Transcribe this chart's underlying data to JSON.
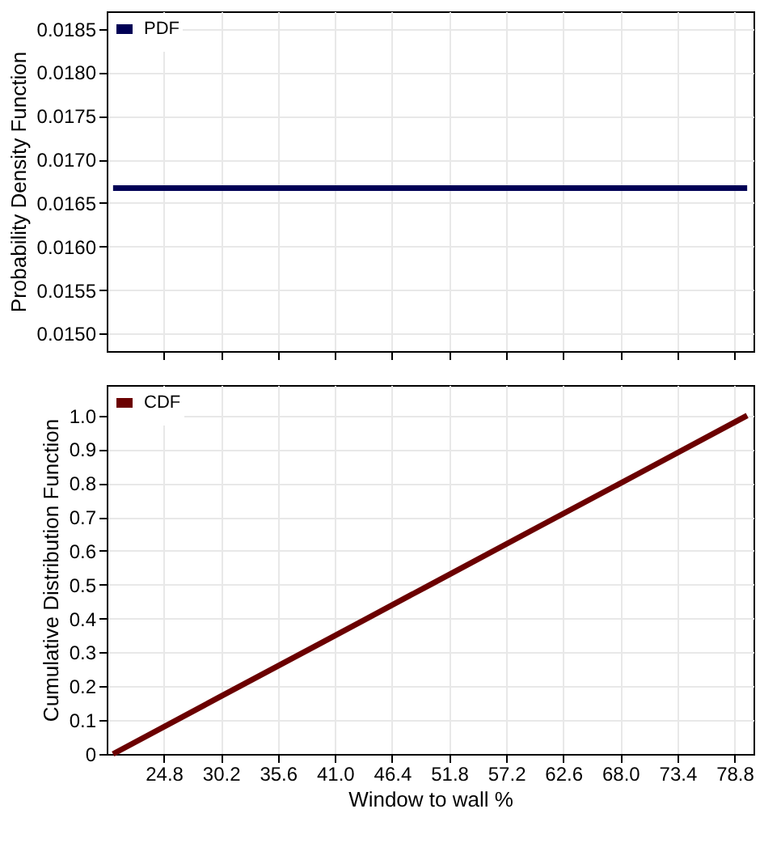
{
  "chart_data": [
    {
      "type": "line",
      "ylabel": "Probability Density Function",
      "x": [
        20,
        80
      ],
      "xlim": [
        19.4,
        80.6
      ],
      "xticks": [
        24.8,
        30.2,
        35.6,
        41.0,
        46.4,
        51.8,
        57.2,
        62.6,
        68.0,
        73.4,
        78.8
      ],
      "ylim": [
        0.0148,
        0.0187
      ],
      "yticks": [
        {
          "value": 0.015,
          "label": "0.0150"
        },
        {
          "value": 0.0155,
          "label": "0.0155"
        },
        {
          "value": 0.016,
          "label": "0.0160"
        },
        {
          "value": 0.0165,
          "label": "0.0165"
        },
        {
          "value": 0.017,
          "label": "0.0170"
        },
        {
          "value": 0.0175,
          "label": "0.0175"
        },
        {
          "value": 0.018,
          "label": "0.0180"
        },
        {
          "value": 0.0185,
          "label": "0.0185"
        }
      ],
      "tick_labels": "y",
      "grid": true,
      "legend": "top left",
      "marker": "none",
      "line_style": "solid",
      "series": [
        {
          "name": "PDF",
          "color": "#000055",
          "values": [
            0.01667,
            0.01667
          ]
        }
      ]
    },
    {
      "type": "line",
      "xlabel": "Window to wall %",
      "ylabel": "Cumulative Distribution Function",
      "x": [
        20,
        30,
        40,
        50,
        60,
        70,
        80
      ],
      "xlim": [
        19.4,
        80.6
      ],
      "xticks": [
        {
          "value": 24.8,
          "label": "24.8"
        },
        {
          "value": 30.2,
          "label": "30.2"
        },
        {
          "value": 35.6,
          "label": "35.6"
        },
        {
          "value": 41.0,
          "label": "41.0"
        },
        {
          "value": 46.4,
          "label": "46.4"
        },
        {
          "value": 51.8,
          "label": "51.8"
        },
        {
          "value": 57.2,
          "label": "57.2"
        },
        {
          "value": 62.6,
          "label": "62.6"
        },
        {
          "value": 68.0,
          "label": "68.0"
        },
        {
          "value": 73.4,
          "label": "73.4"
        },
        {
          "value": 78.8,
          "label": "78.8"
        }
      ],
      "ylim": [
        0,
        1.09
      ],
      "yticks": [
        0,
        {
          "value": 0.1,
          "label": "0.1"
        },
        {
          "value": 0.2,
          "label": "0.2"
        },
        {
          "value": 0.3,
          "label": "0.3"
        },
        {
          "value": 0.4,
          "label": "0.4"
        },
        {
          "value": 0.5,
          "label": "0.5"
        },
        {
          "value": 0.6,
          "label": "0.6"
        },
        {
          "value": 0.7,
          "label": "0.7"
        },
        {
          "value": 0.8,
          "label": "0.8"
        },
        {
          "value": 0.9,
          "label": "0.9"
        },
        {
          "value": 1.0,
          "label": "1.0"
        }
      ],
      "grid": true,
      "legend": "top left",
      "marker": "none",
      "line_style": "solid",
      "series": [
        {
          "name": "CDF",
          "color": "#6b0000",
          "values": [
            0,
            0.167,
            0.333,
            0.5,
            0.667,
            0.833,
            1.0
          ]
        }
      ]
    }
  ]
}
